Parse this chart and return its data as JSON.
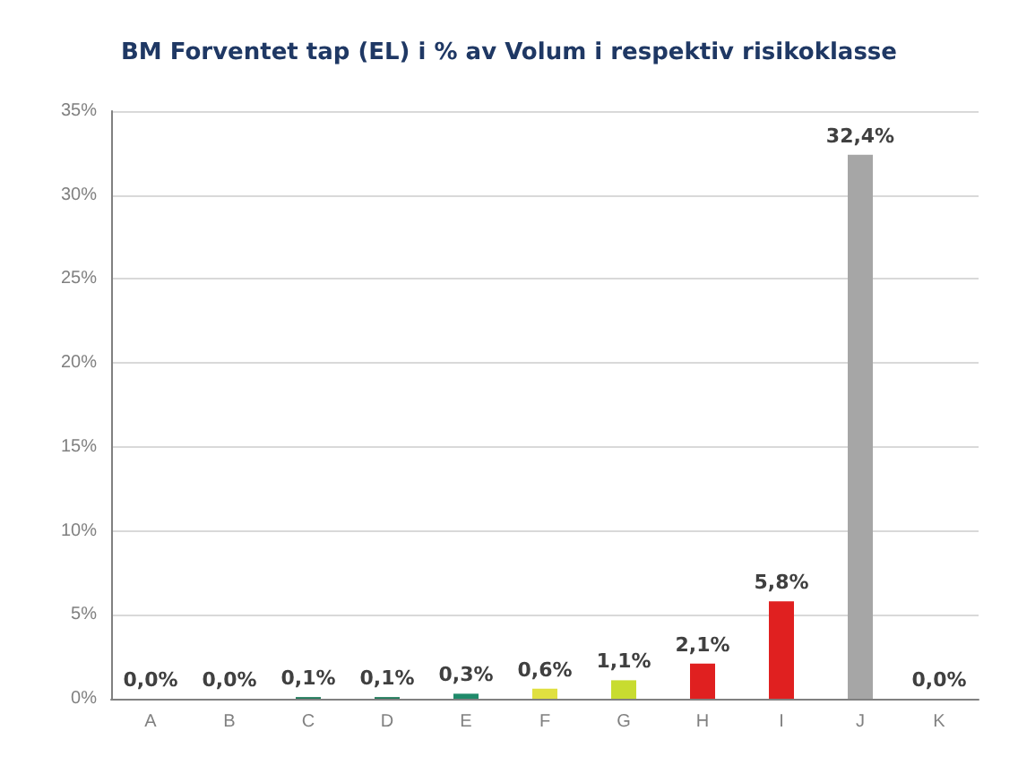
{
  "chart_data": {
    "type": "bar",
    "title": "BM Forventet tap (EL) i % av Volum i respektiv risikoklasse",
    "categories": [
      "A",
      "B",
      "C",
      "D",
      "E",
      "F",
      "G",
      "H",
      "I",
      "J",
      "K"
    ],
    "values": [
      0.0,
      0.0,
      0.1,
      0.1,
      0.3,
      0.6,
      1.1,
      2.1,
      5.8,
      32.4,
      0.0
    ],
    "value_labels": [
      "0,0%",
      "0,0%",
      "0,1%",
      "0,1%",
      "0,3%",
      "0,6%",
      "1,1%",
      "2,1%",
      "5,8%",
      "32,4%",
      "0,0%"
    ],
    "colors": [
      "#1f7a5a",
      "#1f7a5a",
      "#1f7a5a",
      "#1f7a5a",
      "#1f8a6a",
      "#e0e040",
      "#c8dc30",
      "#e02020",
      "#e02020",
      "#a6a6a6",
      "#1f7a5a"
    ],
    "ylim": [
      0,
      35
    ],
    "yticks": [
      {
        "value": 0,
        "label": "0%"
      },
      {
        "value": 5,
        "label": "5%"
      },
      {
        "value": 10,
        "label": "10%"
      },
      {
        "value": 15,
        "label": "15%"
      },
      {
        "value": 20,
        "label": "20%"
      },
      {
        "value": 25,
        "label": "25%"
      },
      {
        "value": 30,
        "label": "30%"
      },
      {
        "value": 35,
        "label": "35%"
      }
    ],
    "grid": "y"
  }
}
